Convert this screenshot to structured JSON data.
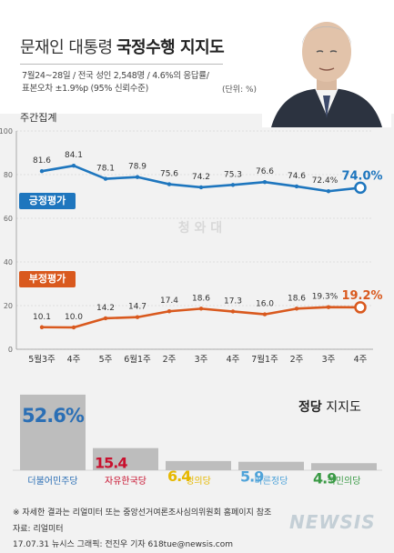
{
  "header": {
    "title_plain": "문재인 대통령",
    "title_bold": "국정수행 지지도",
    "meta_line1": "7월24~28일 / 전국 성인 2,548명 / 4.6%의 응답률/",
    "meta_line2": "표본오차 ±1.9%p (95% 신뢰수준)",
    "unit": "(단위: %)"
  },
  "chart_data": [
    {
      "type": "line",
      "title": "주간집계",
      "x": [
        "5월3주",
        "4주",
        "5주",
        "6월1주",
        "2주",
        "3주",
        "4주",
        "7월1주",
        "2주",
        "3주",
        "4주"
      ],
      "ylim": [
        0,
        100
      ],
      "yticks": [
        "0",
        "20",
        "40",
        "60",
        "80",
        "100"
      ],
      "grid": true,
      "series": [
        {
          "name": "긍정평가",
          "color": "#1e76be",
          "values": [
            81.6,
            84.1,
            78.1,
            78.9,
            75.6,
            74.2,
            75.3,
            76.6,
            74.6,
            72.4,
            74.0
          ],
          "labels": [
            "81.6",
            "84.1",
            "78.1",
            "78.9",
            "75.6",
            "74.2",
            "75.3",
            "76.6",
            "74.6",
            "72.4%",
            "74.0%"
          ]
        },
        {
          "name": "부정평가",
          "color": "#d9591e",
          "values": [
            10.1,
            10.0,
            14.2,
            14.7,
            17.4,
            18.6,
            17.3,
            16.0,
            18.6,
            19.3,
            19.2
          ],
          "labels": [
            "10.1",
            "10.0",
            "14.2",
            "14.7",
            "17.4",
            "18.6",
            "17.3",
            "16.0",
            "18.6",
            "19.3%",
            "19.2%"
          ]
        }
      ]
    },
    {
      "type": "bar",
      "title": "정당 지지도",
      "categories": [
        "더불어민주당",
        "자유한국당",
        "정의당",
        "바른정당",
        "국민의당"
      ],
      "values": [
        52.6,
        15.4,
        6.4,
        5.9,
        4.9
      ],
      "value_labels": [
        "52.6%",
        "15.4",
        "6.4",
        "5.9",
        "4.9"
      ],
      "colors": [
        "#2b6fb5",
        "#c8102e",
        "#e6b800",
        "#4fa3d9",
        "#3a9a45"
      ]
    }
  ],
  "party_title_bold": "정당",
  "party_title_plain": "지지도",
  "watermark": "청 와 대",
  "footnote": "※ 자세한 결과는 리얼미터 또는 중앙선거여론조사심의위원회 홈페이지 참조",
  "source": "자료: 리얼미터",
  "credit": "17.07.31 뉴시스 그래픽: 전진우 기자 618tue@newsis.com",
  "logo": "NEWSIS"
}
